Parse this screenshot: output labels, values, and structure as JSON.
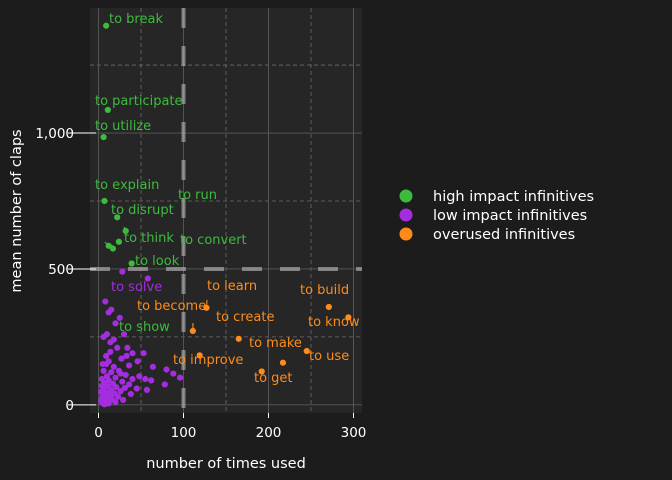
{
  "chart_data": {
    "type": "scatter",
    "title": "",
    "xlabel": "number of times used",
    "ylabel": "mean number of claps",
    "xlim": [
      -10,
      310
    ],
    "ylim": [
      -30,
      1460
    ],
    "x_ticks": [
      0,
      100,
      200,
      300
    ],
    "y_ticks": [
      0,
      500,
      1000
    ],
    "x_minor": [
      50,
      150,
      250
    ],
    "y_minor": [
      250,
      750,
      1250
    ],
    "grid": true,
    "legend_position": "right",
    "reference_lines": {
      "x": 100,
      "y": 500,
      "style": "dashed"
    },
    "series": [
      {
        "name": "high impact infinitives",
        "color": "#3dbb3d",
        "points": [
          {
            "x": 9,
            "y": 1395,
            "label": "to break"
          },
          {
            "x": 11,
            "y": 1085,
            "label": "to participate"
          },
          {
            "x": 6,
            "y": 985,
            "label": "to utilize"
          },
          {
            "x": 7,
            "y": 750,
            "label": "to explain"
          },
          {
            "x": 32,
            "y": 640,
            "label": "to run"
          },
          {
            "x": 22,
            "y": 690,
            "label": "to disrupt"
          },
          {
            "x": 24,
            "y": 600,
            "label": "to think"
          },
          {
            "x": 17,
            "y": 575,
            "label": "to convert"
          },
          {
            "x": 39,
            "y": 520,
            "label": "to look"
          },
          {
            "x": 12,
            "y": 585,
            "label": "to show"
          }
        ]
      },
      {
        "name": "low impact infinitives",
        "color": "#a42ddf",
        "points": [
          {
            "x": 28,
            "y": 490
          },
          {
            "x": 58,
            "y": 465,
            "label": "to solve"
          },
          {
            "x": 15,
            "y": 350
          },
          {
            "x": 8,
            "y": 380
          },
          {
            "x": 12,
            "y": 340
          },
          {
            "x": 20,
            "y": 300
          },
          {
            "x": 25,
            "y": 320
          },
          {
            "x": 10,
            "y": 260
          },
          {
            "x": 18,
            "y": 240
          },
          {
            "x": 30,
            "y": 260
          },
          {
            "x": 6,
            "y": 250
          },
          {
            "x": 22,
            "y": 210
          },
          {
            "x": 34,
            "y": 210
          },
          {
            "x": 14,
            "y": 195
          },
          {
            "x": 40,
            "y": 190
          },
          {
            "x": 53,
            "y": 190
          },
          {
            "x": 9,
            "y": 180
          },
          {
            "x": 27,
            "y": 170
          },
          {
            "x": 46,
            "y": 160
          },
          {
            "x": 12,
            "y": 160
          },
          {
            "x": 64,
            "y": 140
          },
          {
            "x": 36,
            "y": 145
          },
          {
            "x": 5,
            "y": 150
          },
          {
            "x": 18,
            "y": 140
          },
          {
            "x": 80,
            "y": 130
          },
          {
            "x": 88,
            "y": 115
          },
          {
            "x": 96,
            "y": 100
          },
          {
            "x": 6,
            "y": 125
          },
          {
            "x": 15,
            "y": 120
          },
          {
            "x": 24,
            "y": 125
          },
          {
            "x": 32,
            "y": 110
          },
          {
            "x": 48,
            "y": 105
          },
          {
            "x": 10,
            "y": 105
          },
          {
            "x": 20,
            "y": 100
          },
          {
            "x": 40,
            "y": 95
          },
          {
            "x": 55,
            "y": 95
          },
          {
            "x": 4,
            "y": 95
          },
          {
            "x": 12,
            "y": 90
          },
          {
            "x": 28,
            "y": 85
          },
          {
            "x": 62,
            "y": 90
          },
          {
            "x": 7,
            "y": 80
          },
          {
            "x": 17,
            "y": 78
          },
          {
            "x": 36,
            "y": 75
          },
          {
            "x": 78,
            "y": 75
          },
          {
            "x": 4,
            "y": 70
          },
          {
            "x": 11,
            "y": 68
          },
          {
            "x": 21,
            "y": 65
          },
          {
            "x": 31,
            "y": 62
          },
          {
            "x": 45,
            "y": 60
          },
          {
            "x": 57,
            "y": 55
          },
          {
            "x": 6,
            "y": 58
          },
          {
            "x": 15,
            "y": 55
          },
          {
            "x": 26,
            "y": 50
          },
          {
            "x": 3,
            "y": 48
          },
          {
            "x": 9,
            "y": 45
          },
          {
            "x": 19,
            "y": 42
          },
          {
            "x": 38,
            "y": 40
          },
          {
            "x": 5,
            "y": 36
          },
          {
            "x": 13,
            "y": 32
          },
          {
            "x": 23,
            "y": 30
          },
          {
            "x": 4,
            "y": 25
          },
          {
            "x": 8,
            "y": 22
          },
          {
            "x": 16,
            "y": 20
          },
          {
            "x": 29,
            "y": 18
          },
          {
            "x": 3,
            "y": 14
          },
          {
            "x": 10,
            "y": 12
          },
          {
            "x": 20,
            "y": 10
          },
          {
            "x": 5,
            "y": 6
          },
          {
            "x": 12,
            "y": 5
          },
          {
            "x": 7,
            "y": 2
          },
          {
            "x": 16,
            "y": 40
          },
          {
            "x": 26,
            "y": 115
          },
          {
            "x": 9,
            "y": 150
          },
          {
            "x": 14,
            "y": 230
          },
          {
            "x": 33,
            "y": 180
          }
        ]
      },
      {
        "name": "overused infinitives",
        "color": "#ff8c1a",
        "points": [
          {
            "x": 127,
            "y": 357,
            "label": "to learn"
          },
          {
            "x": 271,
            "y": 360,
            "label": "to build"
          },
          {
            "x": 111,
            "y": 272,
            "label": "to become"
          },
          {
            "x": 165,
            "y": 243,
            "label": "to create"
          },
          {
            "x": 294,
            "y": 322,
            "label": "to know"
          },
          {
            "x": 119,
            "y": 182,
            "label": "to improve"
          },
          {
            "x": 217,
            "y": 155,
            "label": "to make"
          },
          {
            "x": 245,
            "y": 198,
            "label": "to use"
          },
          {
            "x": 192,
            "y": 123,
            "label": "to get"
          }
        ]
      }
    ]
  }
}
